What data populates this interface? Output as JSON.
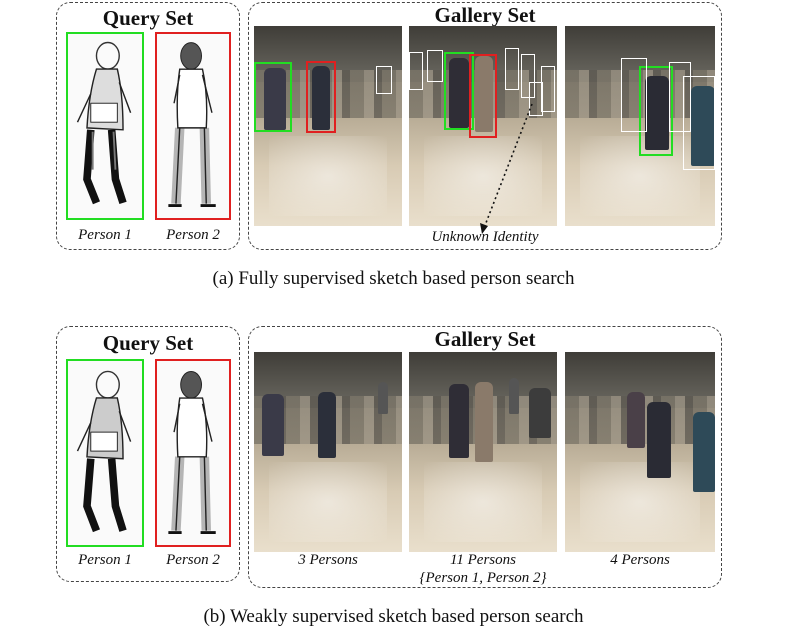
{
  "figure_a": {
    "query_title": "Query Set",
    "gallery_title": "Gallery Set",
    "query_labels": [
      "Person 1",
      "Person 2"
    ],
    "unknown_label": "Unknown Identity",
    "caption": "(a)  Fully supervised sketch based person search"
  },
  "figure_b": {
    "query_title": "Query Set",
    "gallery_title": "Gallery Set",
    "query_labels": [
      "Person 1",
      "Person 2"
    ],
    "gallery_labels": [
      "3 Persons",
      "11 Persons",
      "4 Persons"
    ],
    "gallery_sublabel": "{Person 1, Person 2}",
    "caption": "(b)  Weakly supervised sketch based person search"
  },
  "colors": {
    "person1_box": "#22dd22",
    "person2_box": "#e02020",
    "unknown_box": "#ffffff"
  }
}
